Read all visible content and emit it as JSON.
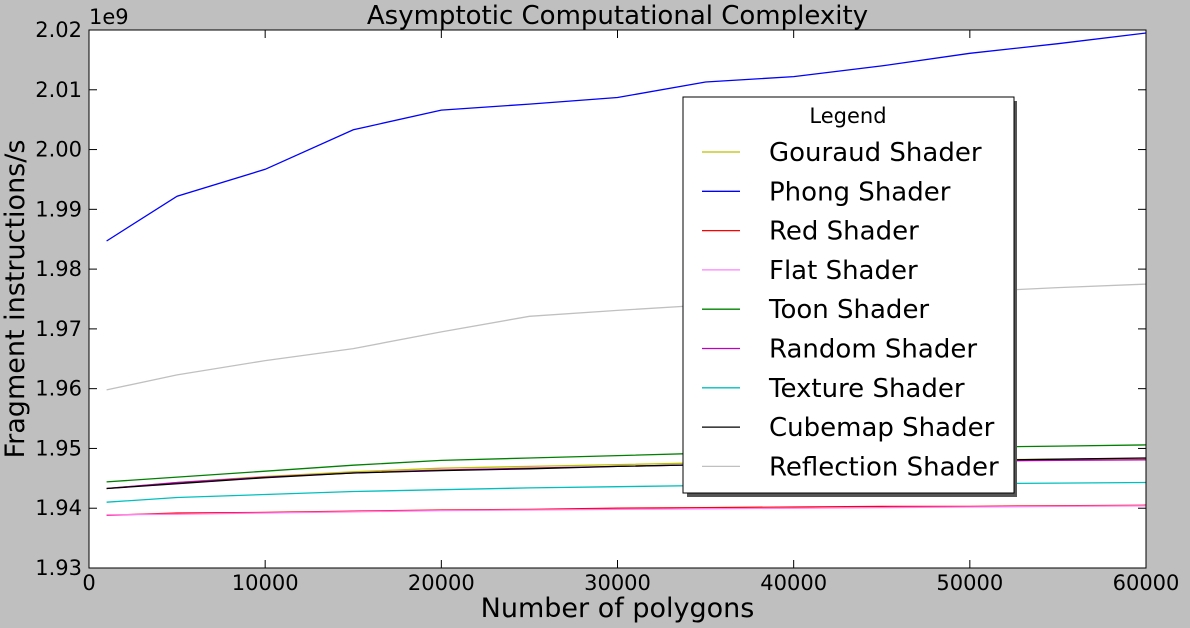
{
  "chart_data": {
    "type": "line",
    "title": "Asymptotic Computational Complexity",
    "xlabel": "Number of polygons",
    "ylabel": "Fragment instructions/s",
    "y_multiplier_label": "1e9",
    "xlim": [
      0,
      60000
    ],
    "ylim": [
      1.93,
      2.02
    ],
    "x_ticks": [
      "0",
      "10000",
      "20000",
      "30000",
      "40000",
      "50000",
      "60000"
    ],
    "y_ticks": [
      "1.93",
      "1.94",
      "1.95",
      "1.96",
      "1.97",
      "1.98",
      "1.99",
      "2.00",
      "2.01",
      "2.02"
    ],
    "grid": false,
    "legend": {
      "title": "Legend",
      "placement": "upper-right"
    },
    "x": [
      1000,
      5000,
      10000,
      15000,
      20000,
      25000,
      30000,
      35000,
      40000,
      45000,
      50000,
      55000,
      60000
    ],
    "series": [
      {
        "name": "Gouraud Shader",
        "color": "#bfbf00",
        "values": [
          1.9433,
          1.9443,
          1.9453,
          1.9461,
          1.9467,
          1.947,
          1.9473,
          1.9476,
          1.9478,
          1.948,
          1.9481,
          1.9482,
          1.9483
        ]
      },
      {
        "name": "Phong Shader",
        "color": "#0000ff",
        "values": [
          1.9847,
          1.9922,
          1.9967,
          2.0033,
          2.0066,
          2.0076,
          2.0087,
          2.0113,
          2.0122,
          2.014,
          2.0161,
          2.0177,
          2.0195
        ]
      },
      {
        "name": "Red Shader",
        "color": "#ff0000",
        "values": [
          1.9388,
          1.9392,
          1.9393,
          1.9395,
          1.9397,
          1.9398,
          1.94,
          1.9401,
          1.9402,
          1.9403,
          1.9403,
          1.9404,
          1.9405
        ]
      },
      {
        "name": "Flat Shader",
        "color": "#ff80ff",
        "values": [
          1.9389,
          1.939,
          1.9392,
          1.9394,
          1.9396,
          1.9397,
          1.9398,
          1.9399,
          1.94,
          1.9401,
          1.9402,
          1.9403,
          1.9404
        ]
      },
      {
        "name": "Toon Shader",
        "color": "#008000",
        "values": [
          1.9444,
          1.9452,
          1.9462,
          1.9472,
          1.948,
          1.9484,
          1.9488,
          1.9492,
          1.9496,
          1.9499,
          1.9502,
          1.9504,
          1.9506
        ]
      },
      {
        "name": "Random Shader",
        "color": "#bf00bf",
        "values": [
          1.9433,
          1.9443,
          1.9452,
          1.9459,
          1.9464,
          1.9467,
          1.947,
          1.9473,
          1.9475,
          1.9477,
          1.9479,
          1.948,
          1.9481
        ]
      },
      {
        "name": "Texture Shader",
        "color": "#00bfbf",
        "values": [
          1.941,
          1.9418,
          1.9423,
          1.9428,
          1.9431,
          1.9434,
          1.9436,
          1.9438,
          1.9439,
          1.944,
          1.9441,
          1.9442,
          1.9443
        ]
      },
      {
        "name": "Cubemap Shader",
        "color": "#000000",
        "values": [
          1.9433,
          1.9441,
          1.9451,
          1.9459,
          1.9463,
          1.9466,
          1.947,
          1.9473,
          1.9476,
          1.9478,
          1.948,
          1.9482,
          1.9484
        ]
      },
      {
        "name": "Reflection Shader",
        "color": "#c0c0c0",
        "values": [
          1.9598,
          1.9623,
          1.9647,
          1.9667,
          1.9695,
          1.9721,
          1.9731,
          1.974,
          1.9748,
          1.9755,
          1.9762,
          1.9769,
          1.9775
        ]
      }
    ]
  }
}
